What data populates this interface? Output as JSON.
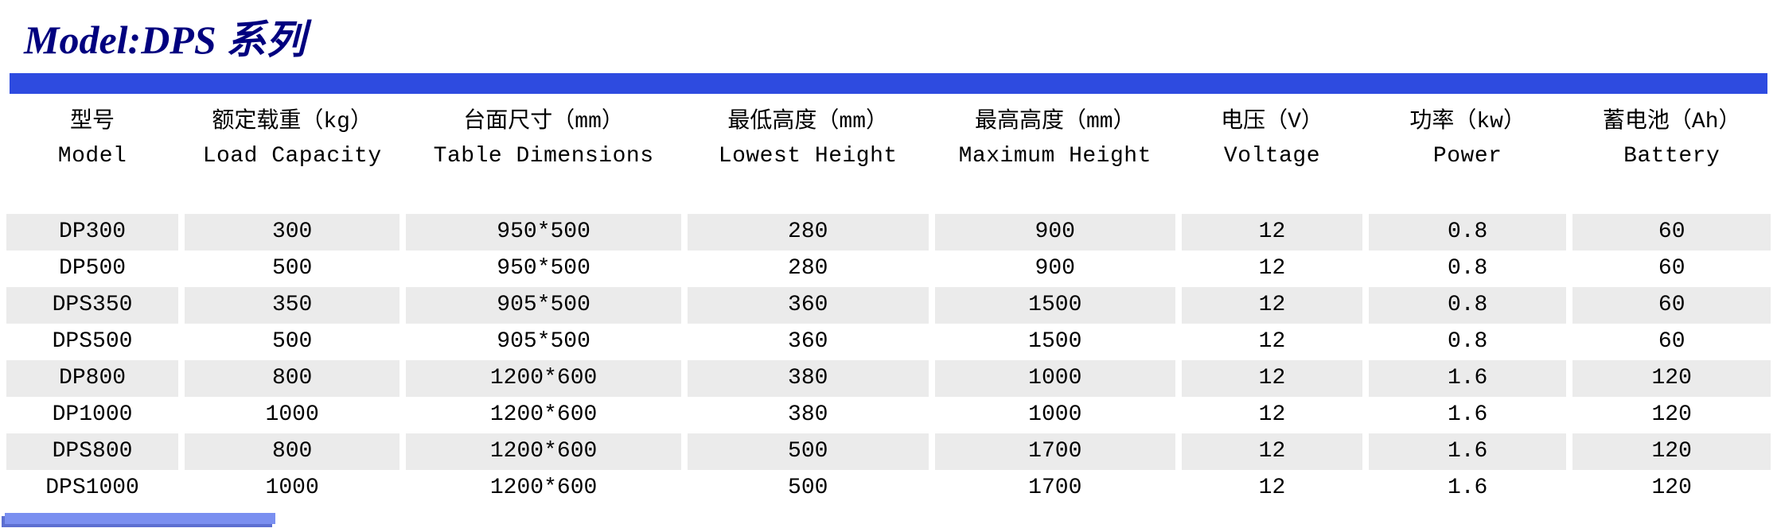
{
  "title": "Model:DPS 系列",
  "table": {
    "type": "table",
    "header_bar_color": "#2e4be0",
    "row_stripe_color": "#ebebeb",
    "row_plain_color": "#ffffff",
    "text_color": "#000000",
    "title_color": "#00007f",
    "font_size_cell": 28,
    "font_size_title": 50,
    "column_widths_pct": [
      10,
      12.5,
      16,
      14,
      14,
      10.5,
      11.5,
      11.5
    ],
    "columns": [
      {
        "cn": "型号",
        "en": "Model"
      },
      {
        "cn": "额定载重（kg）",
        "en": "Load Capacity"
      },
      {
        "cn": "台面尺寸（mm）",
        "en": "Table Dimensions"
      },
      {
        "cn": "最低高度（mm）",
        "en": "Lowest Height"
      },
      {
        "cn": "最高高度（mm）",
        "en": "Maximum Height"
      },
      {
        "cn": "电压（V）",
        "en": "Voltage"
      },
      {
        "cn": "功率（kw）",
        "en": "Power"
      },
      {
        "cn": "蓄电池（Ah）",
        "en": "Battery"
      }
    ],
    "rows": [
      [
        "DP300",
        "300",
        "950*500",
        "280",
        "900",
        "12",
        "0.8",
        "60"
      ],
      [
        "DP500",
        "500",
        "950*500",
        "280",
        "900",
        "12",
        "0.8",
        "60"
      ],
      [
        "DPS350",
        "350",
        "905*500",
        "360",
        "1500",
        "12",
        "0.8",
        "60"
      ],
      [
        "DPS500",
        "500",
        "905*500",
        "360",
        "1500",
        "12",
        "0.8",
        "60"
      ],
      [
        "DP800",
        "800",
        "1200*600",
        "380",
        "1000",
        "12",
        "1.6",
        "120"
      ],
      [
        "DP1000",
        "1000",
        "1200*600",
        "380",
        "1000",
        "12",
        "1.6",
        "120"
      ],
      [
        "DPS800",
        "800",
        "1200*600",
        "500",
        "1700",
        "12",
        "1.6",
        "120"
      ],
      [
        "DPS1000",
        "1000",
        "1200*600",
        "500",
        "1700",
        "12",
        "1.6",
        "120"
      ]
    ]
  }
}
